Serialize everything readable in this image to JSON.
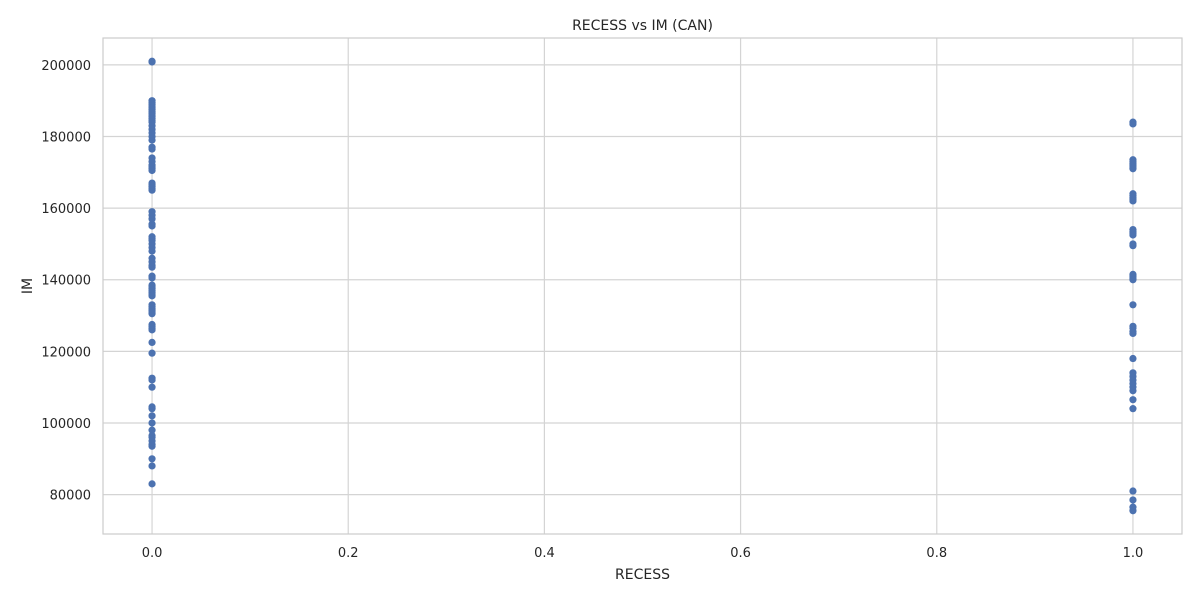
{
  "chart_data": {
    "type": "scatter",
    "title": "RECESS vs IM (CAN)",
    "xlabel": "RECESS",
    "ylabel": "IM",
    "xlim": [
      -0.05,
      1.05
    ],
    "ylim": [
      69000,
      207500
    ],
    "xticks": [
      0.0,
      0.2,
      0.4,
      0.6,
      0.8,
      1.0
    ],
    "xtick_labels": [
      "0.0",
      "0.2",
      "0.4",
      "0.6",
      "0.8",
      "1.0"
    ],
    "yticks": [
      80000,
      100000,
      120000,
      140000,
      160000,
      180000,
      200000
    ],
    "ytick_labels": [
      "80000",
      "100000",
      "120000",
      "140000",
      "160000",
      "180000",
      "200000"
    ],
    "grid": true,
    "marker_color": "#4c72b0",
    "series": [
      {
        "x": 0,
        "y": [
          201000,
          200800,
          190000,
          189500,
          189000,
          188500,
          188000,
          187500,
          187000,
          186500,
          186000,
          185500,
          185000,
          184500,
          184000,
          183000,
          182000,
          181000,
          180000,
          179000,
          177000,
          176500,
          174000,
          173000,
          172000,
          171500,
          171000,
          170500,
          167000,
          166500,
          166000,
          165500,
          165000,
          159000,
          158000,
          157000,
          155500,
          155000,
          152000,
          151500,
          151000,
          150000,
          149000,
          148000,
          146000,
          145000,
          144000,
          143500,
          141000,
          140500,
          138500,
          138000,
          137500,
          137000,
          136500,
          136000,
          135500,
          133000,
          132500,
          132000,
          131500,
          131000,
          130500,
          127500,
          127000,
          126500,
          126000,
          122500,
          119500,
          112500,
          112000,
          110000,
          104500,
          104000,
          102000,
          100000,
          98000,
          96500,
          96000,
          95000,
          94000,
          93500,
          90000,
          88000,
          83000
        ]
      },
      {
        "x": 1,
        "y": [
          184000,
          183500,
          173500,
          173000,
          172500,
          172000,
          171500,
          171000,
          164000,
          163500,
          163000,
          162500,
          162000,
          154000,
          153500,
          153000,
          152500,
          150000,
          149500,
          141500,
          141000,
          140500,
          140000,
          133000,
          127000,
          126500,
          125500,
          125000,
          118000,
          114000,
          113000,
          112000,
          111000,
          110000,
          109000,
          106500,
          104000,
          81000,
          78500,
          76500,
          75500
        ]
      }
    ]
  }
}
